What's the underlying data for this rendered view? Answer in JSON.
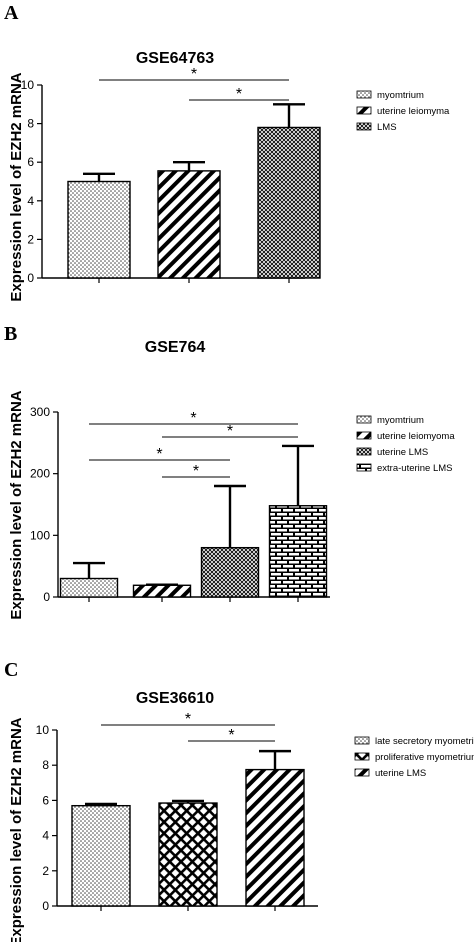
{
  "chart_data": [
    {
      "type": "bar",
      "panel": "A",
      "title": "GSE64763",
      "ylabel": "Expression level of EZH2 mRNA",
      "ylim": [
        0,
        10
      ],
      "yticks": [
        0,
        2,
        4,
        6,
        8,
        10
      ],
      "categories": [
        "myomtrium",
        "uterine leiomyma",
        "LMS"
      ],
      "values": [
        5.0,
        5.55,
        7.8
      ],
      "errors": [
        0.4,
        0.45,
        1.2
      ],
      "patterns": [
        "dots",
        "diag",
        "crosshatch"
      ],
      "legend_position": "right",
      "significance": [
        {
          "from": 0,
          "to": 2,
          "label": "*"
        },
        {
          "from": 1,
          "to": 2,
          "label": "*"
        }
      ]
    },
    {
      "type": "bar",
      "panel": "B",
      "title": "GSE764",
      "ylabel": "Expression level of EZH2 mRNA",
      "ylim": [
        0,
        300
      ],
      "yticks": [
        0,
        100,
        200,
        300
      ],
      "categories": [
        "myomtrium",
        "uterine leiomyoma",
        "uterine LMS",
        "extra-uterine LMS"
      ],
      "values": [
        30,
        19,
        80,
        148
      ],
      "errors": [
        25,
        1,
        100,
        97
      ],
      "patterns": [
        "dots",
        "diag",
        "crosshatch",
        "brick"
      ],
      "legend_position": "right",
      "significance": [
        {
          "from": 0,
          "to": 3,
          "label": "*"
        },
        {
          "from": 1,
          "to": 3,
          "label": "*"
        },
        {
          "from": 0,
          "to": 2,
          "label": "*"
        },
        {
          "from": 1,
          "to": 2,
          "label": "*"
        }
      ]
    },
    {
      "type": "bar",
      "panel": "C",
      "title": "GSE36610",
      "ylabel": "Expression level of EZH2 mRNA",
      "ylim": [
        0,
        10
      ],
      "yticks": [
        0,
        2,
        4,
        6,
        8,
        10
      ],
      "categories": [
        "late secretory myometrium",
        "proliferative myometrium",
        "uterine LMS"
      ],
      "values": [
        5.7,
        5.85,
        7.75
      ],
      "errors": [
        0.1,
        0.12,
        1.05
      ],
      "patterns": [
        "dots",
        "check",
        "diag"
      ],
      "legend_position": "right",
      "significance": [
        {
          "from": 0,
          "to": 2,
          "label": "*"
        },
        {
          "from": 1,
          "to": 2,
          "label": "*"
        }
      ]
    }
  ]
}
